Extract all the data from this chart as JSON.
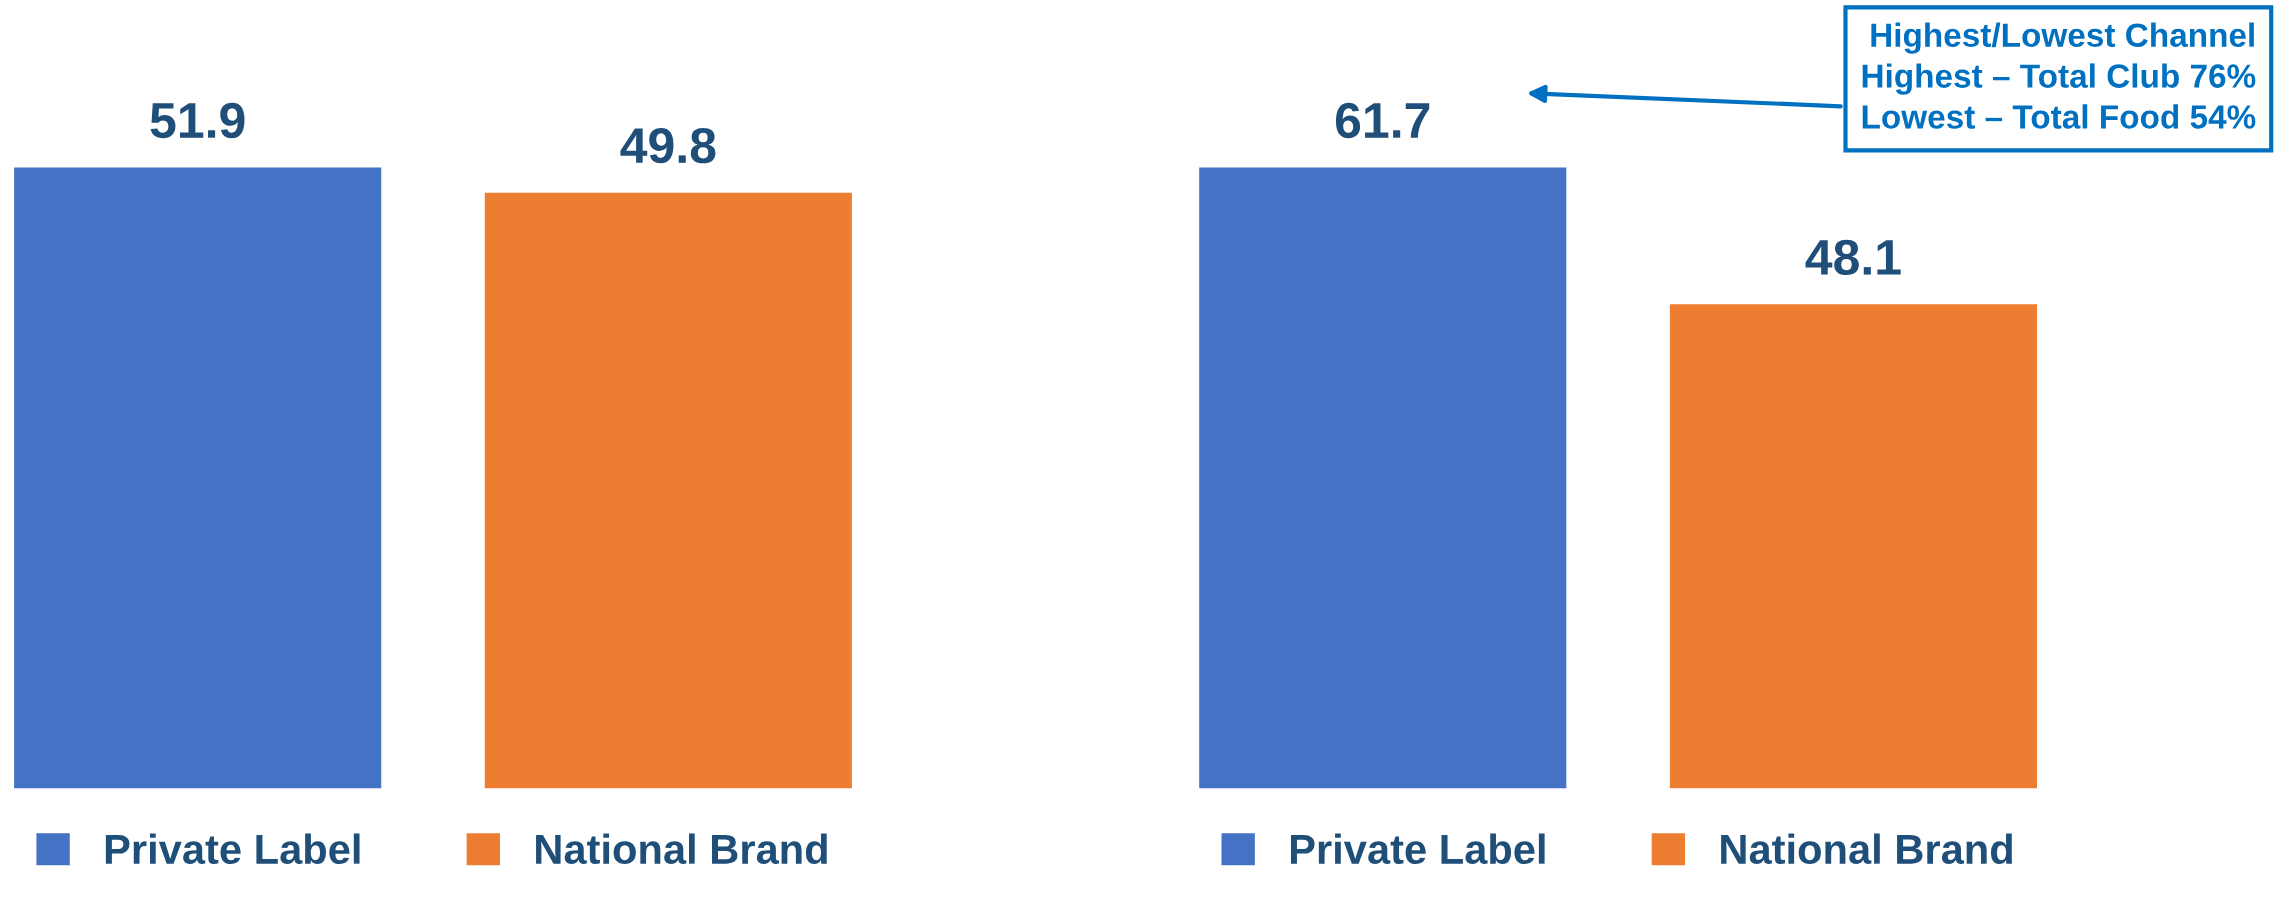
{
  "chart_data": [
    {
      "type": "bar",
      "categories": [
        null
      ],
      "data_labels": true,
      "legend": "bottom",
      "series": [
        {
          "name": "Private Label",
          "color": "#4472c4",
          "values": [
            51.9
          ]
        },
        {
          "name": "National Brand",
          "color": "#ed7d31",
          "values": [
            49.8
          ]
        }
      ]
    },
    {
      "type": "bar",
      "categories": [
        null
      ],
      "data_labels": true,
      "legend": "bottom",
      "annotations": [
        "Highest/Lowest Channel\nHighest – Total Club 76%\nLowest – Total Food 54%"
      ],
      "series": [
        {
          "name": "Private Label",
          "color": "#4472c4",
          "values": [
            61.7
          ]
        },
        {
          "name": "National Brand",
          "color": "#ed7d31",
          "values": [
            48.1
          ]
        }
      ]
    }
  ]
}
